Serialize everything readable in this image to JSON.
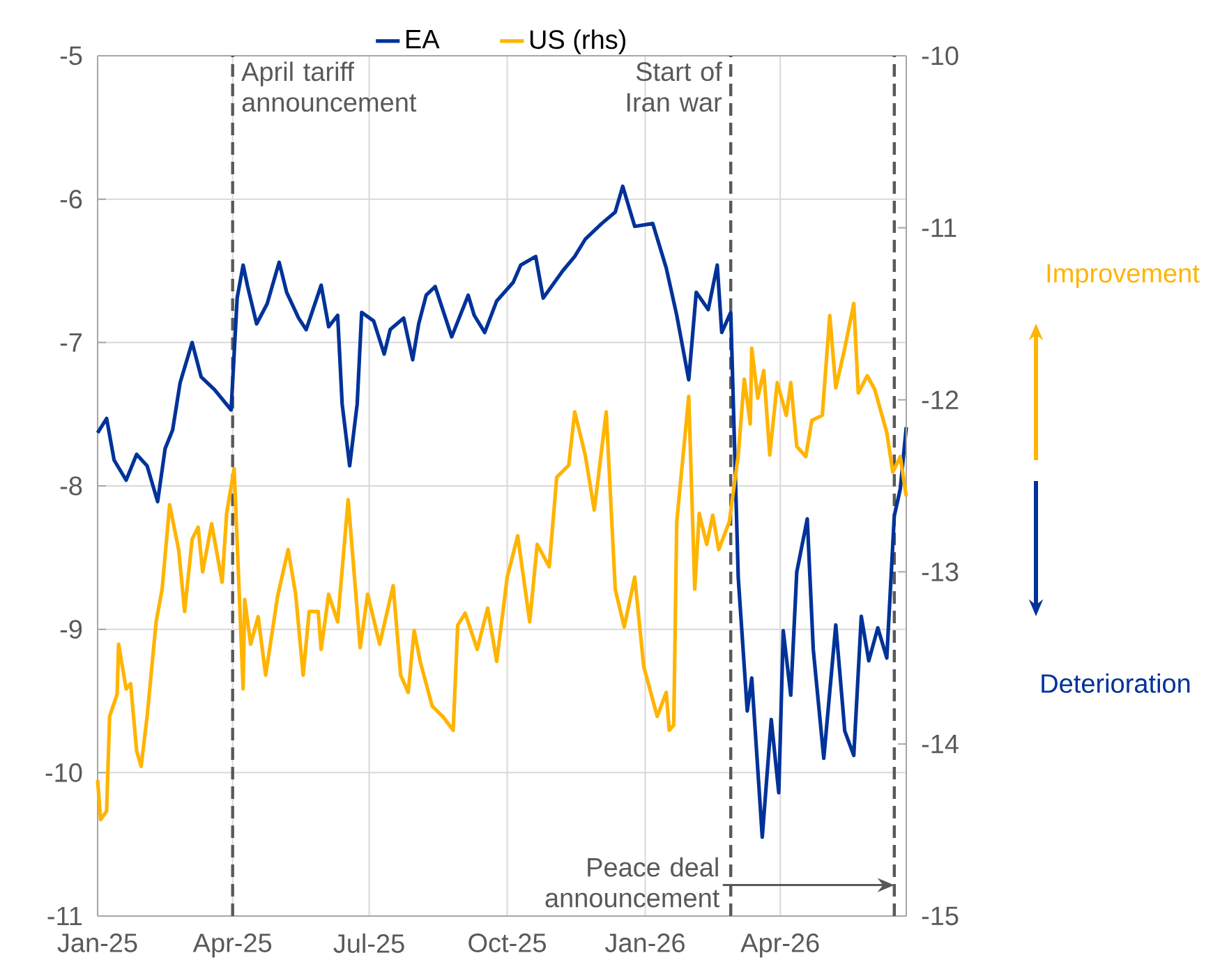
{
  "chart_data": {
    "type": "line",
    "xlim": [
      "2025-01-01",
      "2026-06-24"
    ],
    "xticks": [
      {
        "value": "2025-01-01",
        "label": "Jan-25"
      },
      {
        "value": "2025-04-01",
        "label": "Apr-25"
      },
      {
        "value": "2025-07-01",
        "label": "Jul-25"
      },
      {
        "value": "2025-10-01",
        "label": "Oct-25"
      },
      {
        "value": "2026-01-01",
        "label": "Jan-26"
      },
      {
        "value": "2026-04-01",
        "label": "Apr-26"
      }
    ],
    "ylim": [
      -11,
      -5
    ],
    "yticks": [
      -11,
      -10,
      -9,
      -8,
      -7,
      -6,
      -5
    ],
    "y2lim": [
      -15,
      -10
    ],
    "y2ticks": [
      -15,
      -14,
      -13,
      -12,
      -11,
      -10
    ],
    "grid": true,
    "legend": "top",
    "marker": "none",
    "line_style": "solid",
    "series": [
      {
        "name": "EA",
        "color": "#003299",
        "x": [
          "2025-01-01",
          "2025-01-07",
          "2025-01-12",
          "2025-01-20",
          "2025-01-27",
          "2025-02-03",
          "2025-02-10",
          "2025-02-15",
          "2025-02-20",
          "2025-02-25",
          "2025-03-05",
          "2025-03-11",
          "2025-03-20",
          "2025-03-31",
          "2025-04-04",
          "2025-04-08",
          "2025-04-11",
          "2025-04-17",
          "2025-04-24",
          "2025-05-02",
          "2025-05-07",
          "2025-05-15",
          "2025-05-20",
          "2025-05-30",
          "2025-06-04",
          "2025-06-10",
          "2025-06-13",
          "2025-06-18",
          "2025-06-23",
          "2025-06-26",
          "2025-07-04",
          "2025-07-11",
          "2025-07-15",
          "2025-07-24",
          "2025-07-30",
          "2025-08-03",
          "2025-08-08",
          "2025-08-14",
          "2025-08-25",
          "2025-09-05",
          "2025-09-09",
          "2025-09-16",
          "2025-09-24",
          "2025-10-05",
          "2025-10-10",
          "2025-10-20",
          "2025-10-25",
          "2025-11-07",
          "2025-11-15",
          "2025-11-22",
          "2025-12-03",
          "2025-12-12",
          "2025-12-17",
          "2025-12-25",
          "2026-01-06",
          "2026-01-15",
          "2026-01-22",
          "2026-01-30",
          "2026-02-04",
          "2026-02-12",
          "2026-02-18",
          "2026-02-21",
          "2026-02-27",
          "2026-03-04",
          "2026-03-10",
          "2026-03-13",
          "2026-03-20",
          "2026-03-26",
          "2026-03-31",
          "2026-04-03",
          "2026-04-08",
          "2026-04-12",
          "2026-04-19",
          "2026-04-23",
          "2026-04-30",
          "2026-05-08",
          "2026-05-14",
          "2026-05-20",
          "2026-05-25",
          "2026-05-30",
          "2026-06-05",
          "2026-06-11",
          "2026-06-16",
          "2026-06-20",
          "2026-06-24"
        ],
        "values": [
          -7.63,
          -7.53,
          -7.82,
          -7.96,
          -7.78,
          -7.86,
          -8.11,
          -7.74,
          -7.61,
          -7.28,
          -7.0,
          -7.24,
          -7.33,
          -7.47,
          -6.69,
          -6.46,
          -6.61,
          -6.87,
          -6.73,
          -6.44,
          -6.65,
          -6.83,
          -6.91,
          -6.6,
          -6.89,
          -6.81,
          -7.43,
          -7.86,
          -7.43,
          -6.79,
          -6.85,
          -7.08,
          -6.91,
          -6.83,
          -7.12,
          -6.87,
          -6.67,
          -6.61,
          -6.96,
          -6.67,
          -6.81,
          -6.93,
          -6.71,
          -6.58,
          -6.46,
          -6.4,
          -6.69,
          -6.5,
          -6.4,
          -6.28,
          -6.17,
          -6.09,
          -5.91,
          -6.19,
          -6.17,
          -6.48,
          -6.81,
          -7.26,
          -6.65,
          -6.77,
          -6.46,
          -6.93,
          -6.79,
          -8.64,
          -9.57,
          -9.34,
          -10.45,
          -9.63,
          -10.14,
          -9.01,
          -9.46,
          -8.6,
          -8.23,
          -9.14,
          -9.9,
          -8.97,
          -9.71,
          -9.88,
          -8.91,
          -9.22,
          -8.99,
          -9.2,
          -8.21,
          -8.02,
          -7.59
        ]
      },
      {
        "name": "US (rhs)",
        "color": "#ffb400",
        "axis": "y2",
        "x": [
          "2025-01-01",
          "2025-01-03",
          "2025-01-07",
          "2025-01-09",
          "2025-01-14",
          "2025-01-15",
          "2025-01-20",
          "2025-01-23",
          "2025-01-27",
          "2025-01-30",
          "2025-02-03",
          "2025-02-09",
          "2025-02-13",
          "2025-02-18",
          "2025-02-24",
          "2025-02-28",
          "2025-03-05",
          "2025-03-09",
          "2025-03-12",
          "2025-03-18",
          "2025-03-25",
          "2025-03-28",
          "2025-04-02",
          "2025-04-08",
          "2025-04-09",
          "2025-04-13",
          "2025-04-18",
          "2025-04-23",
          "2025-05-01",
          "2025-05-08",
          "2025-05-13",
          "2025-05-18",
          "2025-05-22",
          "2025-05-28",
          "2025-05-30",
          "2025-06-04",
          "2025-06-10",
          "2025-06-17",
          "2025-06-25",
          "2025-06-30",
          "2025-07-08",
          "2025-07-17",
          "2025-07-22",
          "2025-07-27",
          "2025-07-31",
          "2025-08-04",
          "2025-08-12",
          "2025-08-19",
          "2025-08-26",
          "2025-08-29",
          "2025-09-03",
          "2025-09-11",
          "2025-09-18",
          "2025-09-24",
          "2025-10-01",
          "2025-10-08",
          "2025-10-16",
          "2025-10-21",
          "2025-10-29",
          "2025-11-03",
          "2025-11-11",
          "2025-11-15",
          "2025-11-22",
          "2025-11-28",
          "2025-12-01",
          "2025-12-06",
          "2025-12-12",
          "2025-12-18",
          "2025-12-25",
          "2025-12-31",
          "2026-01-09",
          "2026-01-15",
          "2026-01-17",
          "2026-01-20",
          "2026-01-22",
          "2026-01-30",
          "2026-02-03",
          "2026-02-06",
          "2026-02-11",
          "2026-02-15",
          "2026-02-19",
          "2026-02-26",
          "2026-03-04",
          "2026-03-08",
          "2026-03-12",
          "2026-03-13",
          "2026-03-17",
          "2026-03-21",
          "2026-03-25",
          "2026-03-30",
          "2026-04-05",
          "2026-04-08",
          "2026-04-12",
          "2026-04-18",
          "2026-04-22",
          "2026-04-29",
          "2026-05-04",
          "2026-05-08",
          "2026-05-14",
          "2026-05-20",
          "2026-05-23",
          "2026-05-29",
          "2026-06-03",
          "2026-06-11",
          "2026-06-15",
          "2026-06-20",
          "2026-06-24"
        ],
        "values": [
          -14.21,
          -14.44,
          -14.39,
          -13.84,
          -13.71,
          -13.42,
          -13.68,
          -13.65,
          -14.04,
          -14.13,
          -13.84,
          -13.29,
          -13.1,
          -12.61,
          -12.87,
          -13.23,
          -12.81,
          -12.74,
          -13.0,
          -12.72,
          -13.06,
          -12.66,
          -12.4,
          -13.68,
          -13.16,
          -13.42,
          -13.26,
          -13.6,
          -13.14,
          -12.87,
          -13.13,
          -13.6,
          -13.23,
          -13.23,
          -13.45,
          -13.13,
          -13.29,
          -12.58,
          -13.44,
          -13.13,
          -13.42,
          -13.08,
          -13.6,
          -13.7,
          -13.34,
          -13.52,
          -13.78,
          -13.84,
          -13.92,
          -13.31,
          -13.24,
          -13.45,
          -13.21,
          -13.52,
          -13.03,
          -12.79,
          -13.29,
          -12.84,
          -12.97,
          -12.45,
          -12.38,
          -12.07,
          -12.32,
          -12.64,
          -12.43,
          -12.07,
          -13.1,
          -13.32,
          -13.03,
          -13.55,
          -13.84,
          -13.7,
          -13.92,
          -13.89,
          -12.71,
          -11.98,
          -13.1,
          -12.66,
          -12.84,
          -12.67,
          -12.87,
          -12.71,
          -12.32,
          -11.88,
          -12.14,
          -11.7,
          -11.99,
          -11.83,
          -12.32,
          -11.9,
          -12.09,
          -11.9,
          -12.27,
          -12.33,
          -12.12,
          -12.09,
          -11.51,
          -11.93,
          -11.7,
          -11.44,
          -11.96,
          -11.86,
          -11.94,
          -12.19,
          -12.42,
          -12.33,
          -12.56
        ]
      }
    ],
    "ref_lines": [
      {
        "axis": "x",
        "value": "2025-04-01",
        "label": "April tariff announcement",
        "color": "#595959",
        "line_style": "dashed"
      },
      {
        "axis": "x",
        "value": "2026-02-27",
        "label": "Start of Iran war",
        "color": "#595959",
        "line_style": "dashed"
      },
      {
        "axis": "x",
        "value": "2026-06-16",
        "label": "Peace deal announcement",
        "color": "#595959",
        "line_style": "dashed"
      }
    ],
    "annotations": [
      "Improvement",
      "Deterioration"
    ]
  }
}
